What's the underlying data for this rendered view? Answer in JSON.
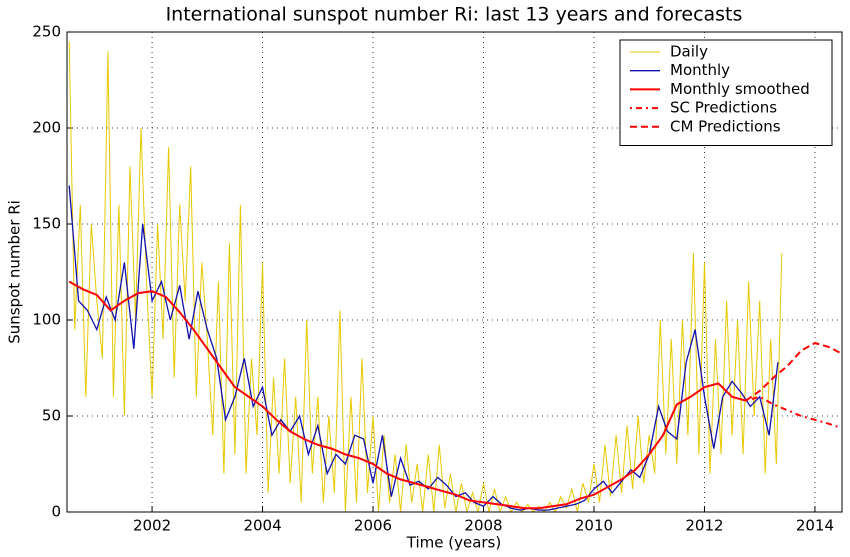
{
  "chart_data": {
    "type": "line",
    "title": "International sunspot number Ri: last 13 years and forecasts",
    "xlabel": "Time (years)",
    "ylabel": "Sunspot number Ri",
    "xlim": [
      2000.46,
      2014.49
    ],
    "ylim": [
      0,
      250
    ],
    "xticks": [
      2002,
      2004,
      2006,
      2008,
      2010,
      2012,
      2014
    ],
    "yticks": [
      0,
      50,
      100,
      150,
      200,
      250
    ],
    "grid": true,
    "legend": "upper right",
    "series": [
      {
        "name": "Daily",
        "color": "#e8c800",
        "style": "solid",
        "width": 1,
        "x": [
          2000.5,
          2000.6,
          2000.7,
          2000.8,
          2000.9,
          2001,
          2001.1,
          2001.2,
          2001.3,
          2001.4,
          2001.5,
          2001.6,
          2001.7,
          2001.8,
          2001.9,
          2002,
          2002.1,
          2002.2,
          2002.3,
          2002.4,
          2002.5,
          2002.6,
          2002.7,
          2002.8,
          2002.9,
          2003,
          2003.1,
          2003.2,
          2003.3,
          2003.4,
          2003.5,
          2003.6,
          2003.7,
          2003.8,
          2003.9,
          2004,
          2004.1,
          2004.2,
          2004.3,
          2004.4,
          2004.5,
          2004.6,
          2004.7,
          2004.8,
          2004.9,
          2005,
          2005.1,
          2005.2,
          2005.3,
          2005.4,
          2005.5,
          2005.6,
          2005.7,
          2005.8,
          2005.9,
          2006,
          2006.1,
          2006.2,
          2006.3,
          2006.4,
          2006.5,
          2006.6,
          2006.7,
          2006.8,
          2006.9,
          2007,
          2007.1,
          2007.2,
          2007.3,
          2007.4,
          2007.5,
          2007.6,
          2007.7,
          2007.8,
          2007.9,
          2008,
          2008.1,
          2008.2,
          2008.3,
          2008.4,
          2008.5,
          2008.6,
          2008.7,
          2008.8,
          2008.9,
          2009,
          2009.1,
          2009.2,
          2009.3,
          2009.4,
          2009.5,
          2009.6,
          2009.7,
          2009.8,
          2009.9,
          2010,
          2010.1,
          2010.2,
          2010.3,
          2010.4,
          2010.5,
          2010.6,
          2010.7,
          2010.8,
          2010.9,
          2011,
          2011.1,
          2011.2,
          2011.3,
          2011.4,
          2011.5,
          2011.6,
          2011.7,
          2011.8,
          2011.9,
          2012,
          2012.1,
          2012.2,
          2012.3,
          2012.4,
          2012.5,
          2012.6,
          2012.7,
          2012.8,
          2012.9,
          2013,
          2013.1,
          2013.2,
          2013.3,
          2013.4
        ],
        "values": [
          245,
          95,
          160,
          60,
          150,
          110,
          80,
          240,
          60,
          160,
          50,
          180,
          100,
          200,
          120,
          60,
          150,
          90,
          190,
          70,
          160,
          110,
          180,
          60,
          130,
          90,
          40,
          120,
          20,
          140,
          30,
          160,
          20,
          80,
          40,
          130,
          10,
          70,
          20,
          80,
          15,
          60,
          5,
          100,
          20,
          60,
          5,
          50,
          10,
          105,
          0,
          60,
          5,
          80,
          10,
          50,
          0,
          40,
          5,
          30,
          0,
          35,
          5,
          25,
          0,
          30,
          0,
          35,
          2,
          20,
          0,
          15,
          0,
          10,
          0,
          15,
          0,
          12,
          0,
          8,
          0,
          5,
          0,
          4,
          0,
          3,
          0,
          5,
          0,
          8,
          2,
          12,
          0,
          15,
          5,
          25,
          5,
          35,
          8,
          40,
          10,
          45,
          12,
          50,
          15,
          40,
          20,
          100,
          30,
          90,
          25,
          100,
          40,
          135,
          30,
          130,
          20,
          90,
          30,
          110,
          40,
          100,
          30,
          120,
          50,
          110,
          20,
          90,
          25,
          135
        ]
      },
      {
        "name": "Monthly",
        "color": "#1010b0",
        "style": "solid",
        "width": 1.3,
        "x": [
          2000.5,
          2000.67,
          2000.83,
          2001,
          2001.17,
          2001.33,
          2001.5,
          2001.67,
          2001.83,
          2002,
          2002.17,
          2002.33,
          2002.5,
          2002.67,
          2002.83,
          2003,
          2003.17,
          2003.33,
          2003.5,
          2003.67,
          2003.83,
          2004,
          2004.17,
          2004.33,
          2004.5,
          2004.67,
          2004.83,
          2005,
          2005.17,
          2005.33,
          2005.5,
          2005.67,
          2005.83,
          2006,
          2006.17,
          2006.33,
          2006.5,
          2006.67,
          2006.83,
          2007,
          2007.17,
          2007.33,
          2007.5,
          2007.67,
          2007.83,
          2008,
          2008.17,
          2008.33,
          2008.5,
          2008.67,
          2008.83,
          2009,
          2009.17,
          2009.33,
          2009.5,
          2009.67,
          2009.83,
          2010,
          2010.17,
          2010.33,
          2010.5,
          2010.67,
          2010.83,
          2011,
          2011.17,
          2011.33,
          2011.5,
          2011.67,
          2011.83,
          2012,
          2012.17,
          2012.33,
          2012.5,
          2012.67,
          2012.83,
          2013,
          2013.17,
          2013.33
        ],
        "values": [
          170,
          110,
          105,
          95,
          112,
          100,
          130,
          85,
          150,
          110,
          120,
          100,
          118,
          90,
          115,
          95,
          80,
          48,
          60,
          80,
          55,
          65,
          40,
          48,
          42,
          50,
          30,
          45,
          20,
          30,
          25,
          40,
          38,
          15,
          40,
          8,
          28,
          14,
          16,
          12,
          18,
          14,
          8,
          10,
          5,
          3,
          8,
          4,
          2,
          1,
          2,
          1,
          1,
          2,
          3,
          4,
          6,
          12,
          16,
          10,
          16,
          22,
          18,
          30,
          55,
          42,
          38,
          78,
          95,
          60,
          33,
          60,
          68,
          62,
          55,
          60,
          40,
          78
        ]
      },
      {
        "name": "Monthly smoothed",
        "color": "#ff0000",
        "style": "solid",
        "width": 2,
        "x": [
          2000.5,
          2000.75,
          2001,
          2001.25,
          2001.5,
          2001.75,
          2002,
          2002.25,
          2002.5,
          2002.75,
          2003,
          2003.25,
          2003.5,
          2003.75,
          2004,
          2004.25,
          2004.5,
          2004.75,
          2005,
          2005.25,
          2005.5,
          2005.75,
          2006,
          2006.25,
          2006.5,
          2006.75,
          2007,
          2007.25,
          2007.5,
          2007.75,
          2008,
          2008.25,
          2008.5,
          2008.75,
          2009,
          2009.25,
          2009.5,
          2009.75,
          2010,
          2010.25,
          2010.5,
          2010.75,
          2011,
          2011.25,
          2011.5,
          2011.75,
          2012,
          2012.25,
          2012.5,
          2012.75
        ],
        "values": [
          120,
          116,
          113,
          105,
          110,
          114,
          115,
          112,
          104,
          95,
          85,
          75,
          65,
          60,
          55,
          48,
          42,
          38,
          35,
          33,
          30,
          28,
          25,
          20,
          17,
          15,
          13,
          11,
          9,
          6,
          5,
          4,
          3,
          2,
          2,
          3,
          4,
          7,
          9,
          13,
          17,
          22,
          30,
          40,
          56,
          60,
          65,
          67,
          60,
          58
        ]
      },
      {
        "name": "SC Predictions",
        "color": "#ff0000",
        "style": "dashdot",
        "width": 2,
        "x": [
          2012.75,
          2013,
          2013.25,
          2013.5,
          2013.75,
          2014,
          2014.25,
          2014.45
        ],
        "values": [
          58,
          60,
          56,
          53,
          50,
          48,
          46,
          44
        ]
      },
      {
        "name": "CM Predictions",
        "color": "#ff0000",
        "style": "dashed",
        "width": 2,
        "x": [
          2012.75,
          2013,
          2013.25,
          2013.5,
          2013.75,
          2014,
          2014.25,
          2014.45
        ],
        "values": [
          58,
          63,
          70,
          76,
          84,
          88,
          86,
          83
        ]
      }
    ]
  }
}
